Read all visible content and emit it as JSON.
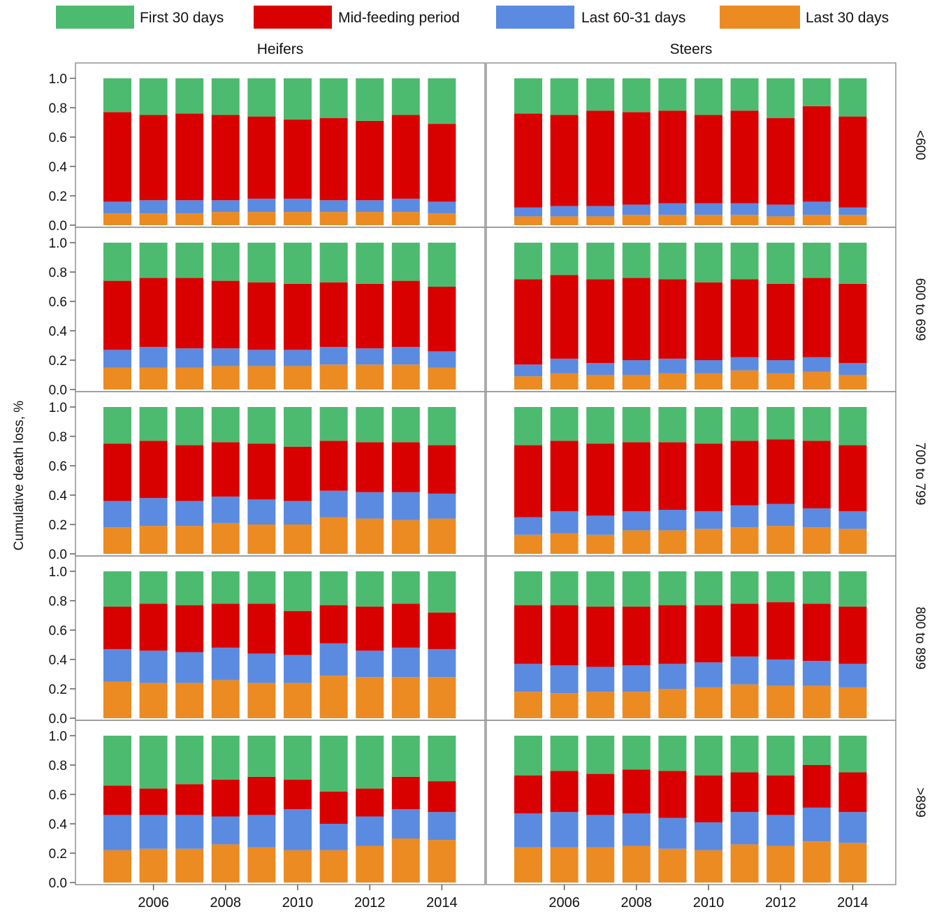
{
  "chart_data": {
    "type": "bar",
    "stacked": true,
    "ylabel": "Cumulative death loss, %",
    "ylim": [
      0,
      1.0
    ],
    "y_ticks": [
      "0.0",
      "0.2",
      "0.4",
      "0.6",
      "0.8",
      "1.0"
    ],
    "x": [
      2005,
      2006,
      2007,
      2008,
      2009,
      2010,
      2011,
      2012,
      2013,
      2014
    ],
    "x_tick_labels": [
      "2006",
      "2008",
      "2010",
      "2012",
      "2014"
    ],
    "x_tick_values": [
      2006,
      2008,
      2010,
      2012,
      2014
    ],
    "legend": {
      "placement": "top",
      "entries": [
        {
          "name": "First 30 days",
          "color": "#4cbb6f"
        },
        {
          "name": "Mid-feeding period",
          "color": "#d90000"
        },
        {
          "name": "Last 60-31 days",
          "color": "#5b8be0"
        },
        {
          "name": "Last 30 days",
          "color": "#ec8b22"
        }
      ]
    },
    "columns": [
      "Heifers",
      "Steers"
    ],
    "rows": [
      "<600",
      "600 to 699",
      "700 to 799",
      "800 to 899",
      ">899"
    ],
    "panels": [
      {
        "sex": "Heifers",
        "weight": "<600",
        "last30": [
          0.08,
          0.08,
          0.08,
          0.09,
          0.09,
          0.09,
          0.09,
          0.09,
          0.09,
          0.08
        ],
        "last60_31": [
          0.16,
          0.17,
          0.17,
          0.17,
          0.18,
          0.18,
          0.17,
          0.17,
          0.18,
          0.16
        ],
        "mid": [
          0.77,
          0.75,
          0.76,
          0.75,
          0.74,
          0.72,
          0.73,
          0.71,
          0.75,
          0.69
        ]
      },
      {
        "sex": "Steers",
        "weight": "<600",
        "last30": [
          0.06,
          0.06,
          0.06,
          0.07,
          0.07,
          0.07,
          0.07,
          0.06,
          0.07,
          0.07
        ],
        "last60_31": [
          0.12,
          0.13,
          0.13,
          0.14,
          0.15,
          0.15,
          0.15,
          0.14,
          0.16,
          0.12
        ],
        "mid": [
          0.76,
          0.75,
          0.78,
          0.77,
          0.78,
          0.75,
          0.78,
          0.73,
          0.81,
          0.74
        ]
      },
      {
        "sex": "Heifers",
        "weight": "600 to 699",
        "last30": [
          0.15,
          0.15,
          0.15,
          0.16,
          0.16,
          0.16,
          0.17,
          0.17,
          0.17,
          0.15
        ],
        "last60_31": [
          0.27,
          0.29,
          0.28,
          0.28,
          0.27,
          0.27,
          0.29,
          0.28,
          0.29,
          0.26
        ],
        "mid": [
          0.74,
          0.76,
          0.76,
          0.74,
          0.73,
          0.72,
          0.73,
          0.72,
          0.74,
          0.7
        ]
      },
      {
        "sex": "Steers",
        "weight": "600 to 699",
        "last30": [
          0.09,
          0.11,
          0.1,
          0.1,
          0.11,
          0.11,
          0.13,
          0.11,
          0.12,
          0.1
        ],
        "last60_31": [
          0.17,
          0.21,
          0.18,
          0.2,
          0.21,
          0.2,
          0.22,
          0.2,
          0.22,
          0.18
        ],
        "mid": [
          0.75,
          0.78,
          0.75,
          0.76,
          0.75,
          0.73,
          0.75,
          0.72,
          0.76,
          0.72
        ]
      },
      {
        "sex": "Heifers",
        "weight": "700 to 799",
        "last30": [
          0.18,
          0.19,
          0.19,
          0.21,
          0.2,
          0.2,
          0.25,
          0.24,
          0.23,
          0.24
        ],
        "last60_31": [
          0.36,
          0.38,
          0.36,
          0.39,
          0.37,
          0.36,
          0.43,
          0.42,
          0.42,
          0.41
        ],
        "mid": [
          0.75,
          0.77,
          0.74,
          0.76,
          0.75,
          0.73,
          0.77,
          0.76,
          0.76,
          0.74
        ]
      },
      {
        "sex": "Steers",
        "weight": "700 to 799",
        "last30": [
          0.13,
          0.14,
          0.13,
          0.16,
          0.16,
          0.17,
          0.18,
          0.19,
          0.18,
          0.17
        ],
        "last60_31": [
          0.25,
          0.29,
          0.26,
          0.29,
          0.3,
          0.29,
          0.33,
          0.34,
          0.31,
          0.29
        ],
        "mid": [
          0.74,
          0.77,
          0.75,
          0.76,
          0.76,
          0.75,
          0.77,
          0.78,
          0.77,
          0.74
        ]
      },
      {
        "sex": "Heifers",
        "weight": "800 to 899",
        "last30": [
          0.25,
          0.24,
          0.24,
          0.26,
          0.24,
          0.24,
          0.29,
          0.28,
          0.28,
          0.28
        ],
        "last60_31": [
          0.47,
          0.46,
          0.45,
          0.48,
          0.44,
          0.43,
          0.51,
          0.46,
          0.48,
          0.47
        ],
        "mid": [
          0.76,
          0.78,
          0.77,
          0.78,
          0.78,
          0.73,
          0.77,
          0.76,
          0.78,
          0.72
        ]
      },
      {
        "sex": "Steers",
        "weight": "800 to 899",
        "last30": [
          0.18,
          0.17,
          0.18,
          0.18,
          0.2,
          0.21,
          0.23,
          0.22,
          0.22,
          0.21
        ],
        "last60_31": [
          0.37,
          0.36,
          0.35,
          0.36,
          0.37,
          0.38,
          0.42,
          0.4,
          0.39,
          0.37
        ],
        "mid": [
          0.77,
          0.77,
          0.76,
          0.76,
          0.77,
          0.77,
          0.78,
          0.79,
          0.78,
          0.76
        ]
      },
      {
        "sex": "Heifers",
        "weight": ">899",
        "last30": [
          0.22,
          0.23,
          0.23,
          0.26,
          0.24,
          0.22,
          0.22,
          0.25,
          0.3,
          0.29
        ],
        "last60_31": [
          0.46,
          0.46,
          0.46,
          0.45,
          0.46,
          0.5,
          0.4,
          0.45,
          0.5,
          0.48
        ],
        "mid": [
          0.66,
          0.64,
          0.67,
          0.7,
          0.72,
          0.7,
          0.62,
          0.64,
          0.72,
          0.69
        ]
      },
      {
        "sex": "Steers",
        "weight": ">899",
        "last30": [
          0.24,
          0.24,
          0.24,
          0.25,
          0.23,
          0.22,
          0.26,
          0.25,
          0.28,
          0.27
        ],
        "last60_31": [
          0.47,
          0.48,
          0.46,
          0.47,
          0.44,
          0.41,
          0.48,
          0.46,
          0.51,
          0.48
        ],
        "mid": [
          0.73,
          0.76,
          0.74,
          0.77,
          0.76,
          0.73,
          0.75,
          0.73,
          0.8,
          0.75
        ]
      }
    ]
  }
}
